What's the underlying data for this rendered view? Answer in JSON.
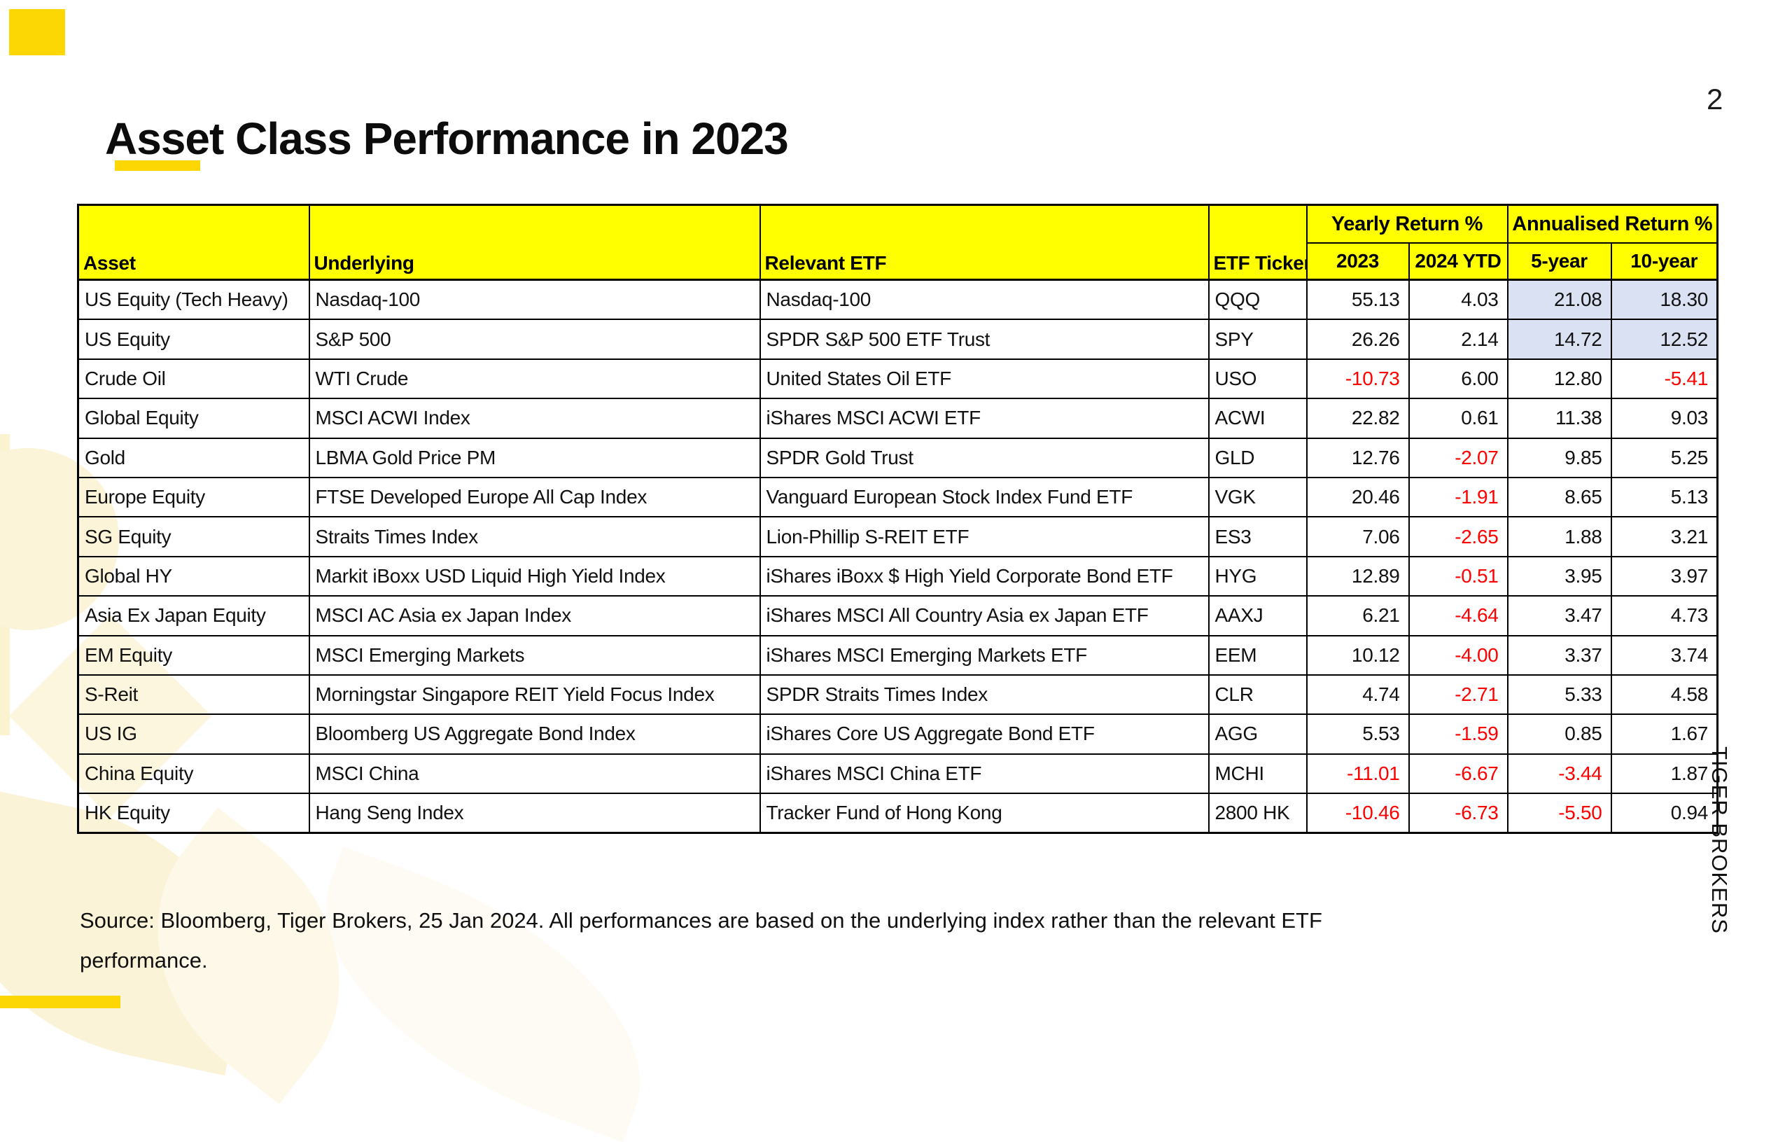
{
  "slide": {
    "title": "Asset Class Performance in 2023",
    "page_number": "2",
    "brand_vertical_text": "TIGER BROKERS",
    "source_text": "Source: Bloomberg, Tiger Brokers, 25 Jan 2024. All performances are based on the underlying index rather than the relevant ETF\nperformance."
  },
  "colors": {
    "header_yellow": "#ffff00",
    "accent_yellow": "#fcd703",
    "negative_red": "#ff0000",
    "annualised_highlight": "#dae1f3"
  },
  "table": {
    "header_groups": {
      "yearly": "Yearly Return %",
      "annualised": "Annualised Return %"
    },
    "columns": [
      "Asset",
      "Underlying",
      "Relevant ETF",
      "ETF Ticker",
      "2023",
      "2024 YTD",
      "5-year",
      "10-year"
    ],
    "rows": [
      {
        "asset": "US Equity (Tech Heavy)",
        "underlying": "Nasdaq-100",
        "etf": "Nasdaq-100",
        "ticker": "QQQ",
        "y2023": "55.13",
        "ytd2024": "4.03",
        "y5": "21.08",
        "y10": "18.30",
        "annualised_highlight": true
      },
      {
        "asset": "US Equity",
        "underlying": "S&P 500",
        "etf": "SPDR S&P 500 ETF Trust",
        "ticker": "SPY",
        "y2023": "26.26",
        "ytd2024": "2.14",
        "y5": "14.72",
        "y10": "12.52",
        "annualised_highlight": true
      },
      {
        "asset": "Crude Oil",
        "underlying": "WTI Crude",
        "etf": "United States Oil ETF",
        "ticker": "USO",
        "y2023": "-10.73",
        "ytd2024": "6.00",
        "y5": "12.80",
        "y10": "-5.41",
        "annualised_highlight": false
      },
      {
        "asset": "Global Equity",
        "underlying": "MSCI ACWI Index",
        "etf": "iShares MSCI ACWI ETF",
        "ticker": "ACWI",
        "y2023": "22.82",
        "ytd2024": "0.61",
        "y5": "11.38",
        "y10": "9.03",
        "annualised_highlight": false
      },
      {
        "asset": "Gold",
        "underlying": "LBMA Gold Price PM",
        "etf": "SPDR Gold Trust",
        "ticker": "GLD",
        "y2023": "12.76",
        "ytd2024": "-2.07",
        "y5": "9.85",
        "y10": "5.25",
        "annualised_highlight": false
      },
      {
        "asset": "Europe Equity",
        "underlying": "FTSE Developed Europe All Cap Index",
        "etf": "Vanguard European Stock Index Fund ETF",
        "ticker": "VGK",
        "y2023": "20.46",
        "ytd2024": "-1.91",
        "y5": "8.65",
        "y10": "5.13",
        "annualised_highlight": false
      },
      {
        "asset": "SG Equity",
        "underlying": "Straits Times Index",
        "etf": "Lion-Phillip S-REIT ETF",
        "ticker": "ES3",
        "y2023": "7.06",
        "ytd2024": "-2.65",
        "y5": "1.88",
        "y10": "3.21",
        "annualised_highlight": false
      },
      {
        "asset": "Global HY",
        "underlying": "Markit iBoxx USD Liquid High Yield Index",
        "etf": "iShares iBoxx $ High Yield Corporate Bond ETF",
        "ticker": "HYG",
        "y2023": "12.89",
        "ytd2024": "-0.51",
        "y5": "3.95",
        "y10": "3.97",
        "annualised_highlight": false
      },
      {
        "asset": "Asia Ex Japan Equity",
        "underlying": "MSCI AC Asia ex Japan Index",
        "etf": "iShares MSCI All Country Asia ex Japan ETF",
        "ticker": "AAXJ",
        "y2023": "6.21",
        "ytd2024": "-4.64",
        "y5": "3.47",
        "y10": "4.73",
        "annualised_highlight": false
      },
      {
        "asset": "EM Equity",
        "underlying": "MSCI Emerging Markets",
        "etf": "iShares MSCI Emerging Markets ETF",
        "ticker": "EEM",
        "y2023": "10.12",
        "ytd2024": "-4.00",
        "y5": "3.37",
        "y10": "3.74",
        "annualised_highlight": false
      },
      {
        "asset": "S-Reit",
        "underlying": "Morningstar Singapore REIT Yield Focus Index",
        "etf": "SPDR Straits Times Index",
        "ticker": "CLR",
        "y2023": "4.74",
        "ytd2024": "-2.71",
        "y5": "5.33",
        "y10": "4.58",
        "annualised_highlight": false
      },
      {
        "asset": "US IG",
        "underlying": "Bloomberg US Aggregate Bond Index",
        "etf": "iShares Core US Aggregate Bond ETF",
        "ticker": "AGG",
        "y2023": "5.53",
        "ytd2024": "-1.59",
        "y5": "0.85",
        "y10": "1.67",
        "annualised_highlight": false
      },
      {
        "asset": "China Equity",
        "underlying": "MSCI China",
        "etf": "iShares MSCI China ETF",
        "ticker": "MCHI",
        "y2023": "-11.01",
        "ytd2024": "-6.67",
        "y5": "-3.44",
        "y10": "1.87",
        "annualised_highlight": false
      },
      {
        "asset": "HK Equity",
        "underlying": "Hang Seng Index",
        "etf": "Tracker Fund of Hong Kong",
        "ticker": "2800 HK",
        "y2023": "-10.46",
        "ytd2024": "-6.73",
        "y5": "-5.50",
        "y10": "0.94",
        "annualised_highlight": false
      }
    ]
  }
}
